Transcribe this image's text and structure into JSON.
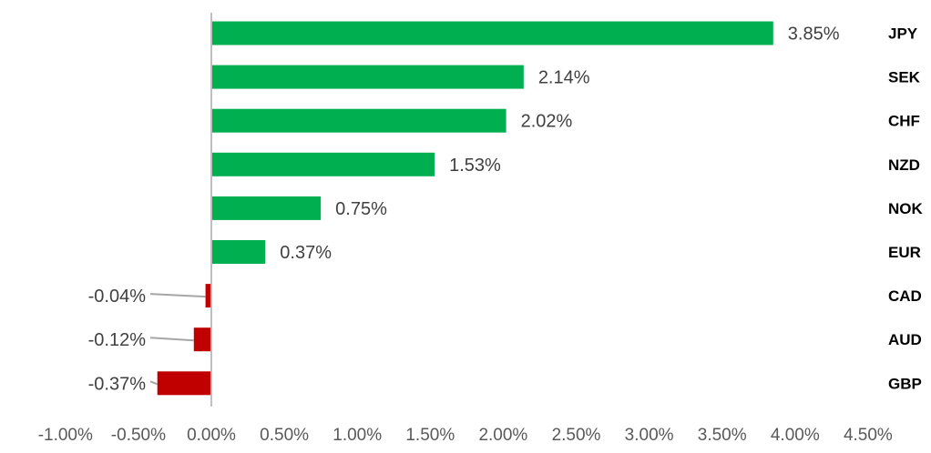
{
  "chart_data": {
    "type": "bar",
    "orientation": "horizontal",
    "categories": [
      "JPY",
      "SEK",
      "CHF",
      "NZD",
      "NOK",
      "EUR",
      "CAD",
      "AUD",
      "GBP"
    ],
    "values": [
      3.85,
      2.14,
      2.02,
      1.53,
      0.75,
      0.37,
      -0.04,
      -0.12,
      -0.37
    ],
    "data_labels": [
      "3.85%",
      "2.14%",
      "2.02%",
      "1.53%",
      "0.75%",
      "0.37%",
      "-0.04%",
      "-0.12%",
      "-0.37%"
    ],
    "xlim": [
      -1.0,
      4.5
    ],
    "x_ticks": [
      -1.0,
      -0.5,
      0.0,
      0.5,
      1.0,
      1.5,
      2.0,
      2.5,
      3.0,
      3.5,
      4.0,
      4.5
    ],
    "x_tick_labels": [
      "-1.00%",
      "-0.50%",
      "0.00%",
      "0.50%",
      "1.00%",
      "1.50%",
      "2.00%",
      "2.50%",
      "3.00%",
      "3.50%",
      "4.00%",
      "4.50%"
    ],
    "title": "",
    "xlabel": "",
    "ylabel": "",
    "grid": false,
    "legend": "none",
    "colors": {
      "positive": "#00b050",
      "negative": "#c00000",
      "axis": "#bfbfbf",
      "leader": "#a6a6a6"
    }
  }
}
